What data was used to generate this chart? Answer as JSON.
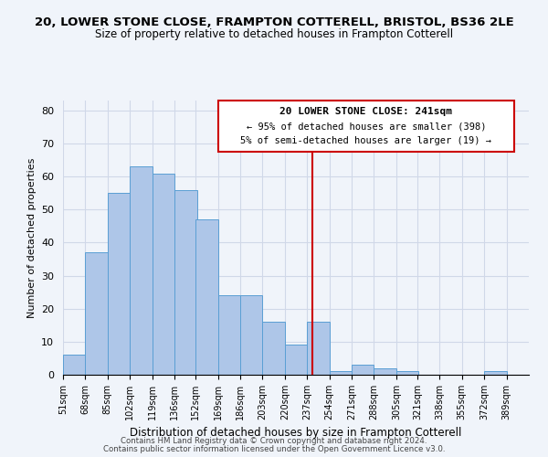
{
  "title": "20, LOWER STONE CLOSE, FRAMPTON COTTERELL, BRISTOL, BS36 2LE",
  "subtitle": "Size of property relative to detached houses in Frampton Cotterell",
  "xlabel": "Distribution of detached houses by size in Frampton Cotterell",
  "ylabel": "Number of detached properties",
  "bin_labels": [
    "51sqm",
    "68sqm",
    "85sqm",
    "102sqm",
    "119sqm",
    "136sqm",
    "152sqm",
    "169sqm",
    "186sqm",
    "203sqm",
    "220sqm",
    "237sqm",
    "254sqm",
    "271sqm",
    "288sqm",
    "305sqm",
    "321sqm",
    "338sqm",
    "355sqm",
    "372sqm",
    "389sqm"
  ],
  "bin_edges": [
    51,
    68,
    85,
    102,
    119,
    136,
    152,
    169,
    186,
    203,
    220,
    237,
    254,
    271,
    288,
    305,
    321,
    338,
    355,
    372,
    389
  ],
  "bar_heights": [
    6,
    37,
    55,
    63,
    61,
    56,
    47,
    24,
    24,
    16,
    9,
    16,
    1,
    3,
    2,
    1,
    0,
    0,
    0,
    1
  ],
  "bar_color": "#aec6e8",
  "bar_edge_color": "#5a9fd4",
  "vline_x": 241,
  "vline_color": "#cc0000",
  "annotation_title": "20 LOWER STONE CLOSE: 241sqm",
  "annotation_line1": "← 95% of detached houses are smaller (398)",
  "annotation_line2": "5% of semi-detached houses are larger (19) →",
  "ylim": [
    0,
    83
  ],
  "yticks": [
    0,
    10,
    20,
    30,
    40,
    50,
    60,
    70,
    80
  ],
  "footer1": "Contains HM Land Registry data © Crown copyright and database right 2024.",
  "footer2": "Contains public sector information licensed under the Open Government Licence v3.0.",
  "bg_color": "#f0f4fa",
  "grid_color": "#d0d8e8"
}
